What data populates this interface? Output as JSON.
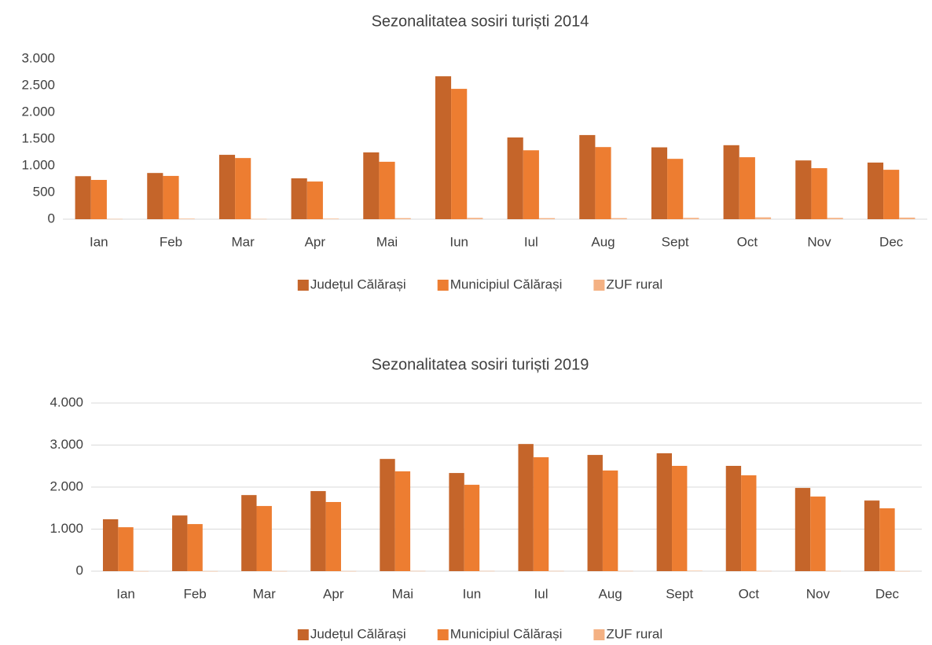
{
  "chart_data": [
    {
      "type": "bar",
      "title": "Sezonalitatea sosiri turiști 2014",
      "categories": [
        "Ian",
        "Feb",
        "Mar",
        "Apr",
        "Mai",
        "Iun",
        "Iul",
        "Aug",
        "Sept",
        "Oct",
        "Nov",
        "Dec"
      ],
      "series": [
        {
          "name": "Județul Călărași",
          "color": "#c5652a",
          "values": [
            805,
            865,
            1205,
            765,
            1250,
            2675,
            1530,
            1575,
            1345,
            1385,
            1100,
            1060
          ]
        },
        {
          "name": "Municipiul Călărași",
          "color": "#ed7d31",
          "values": [
            735,
            810,
            1145,
            705,
            1075,
            2440,
            1290,
            1350,
            1130,
            1160,
            955,
            925
          ]
        },
        {
          "name": "ZUF rural",
          "color": "#f4b183",
          "values": [
            5,
            10,
            5,
            10,
            20,
            25,
            20,
            20,
            25,
            35,
            25,
            30
          ]
        }
      ],
      "ylim": [
        0,
        3000
      ],
      "yticks": [
        0,
        500,
        {
          "value": 1000,
          "label": "1.000"
        },
        {
          "value": 1500,
          "label": "1.500"
        },
        {
          "value": 2000,
          "label": "2.000"
        },
        {
          "value": 2500,
          "label": "2.500"
        },
        {
          "value": 3000,
          "label": "3.000"
        }
      ],
      "grid": false,
      "legend": "bottom"
    },
    {
      "type": "bar",
      "title": "Sezonalitatea sosiri turiști 2019",
      "categories": [
        "Ian",
        "Feb",
        "Mar",
        "Apr",
        "Mai",
        "Iun",
        "Iul",
        "Aug",
        "Sept",
        "Oct",
        "Nov",
        "Dec"
      ],
      "series": [
        {
          "name": "Județul Călărași",
          "color": "#c5652a",
          "values": [
            1235,
            1325,
            1810,
            1905,
            2670,
            2335,
            3025,
            2765,
            2805,
            2505,
            1980,
            1680
          ]
        },
        {
          "name": "Municipiul Călărași",
          "color": "#ed7d31",
          "values": [
            1045,
            1120,
            1550,
            1645,
            2375,
            2055,
            2710,
            2395,
            2505,
            2280,
            1775,
            1495
          ]
        },
        {
          "name": "ZUF rural",
          "color": "#f4b183",
          "values": [
            2,
            2,
            3,
            3,
            5,
            5,
            5,
            5,
            10,
            5,
            5,
            3
          ]
        }
      ],
      "ylim": [
        0,
        4000
      ],
      "yticks": [
        0,
        {
          "value": 1000,
          "label": "1.000"
        },
        {
          "value": 2000,
          "label": "2.000"
        },
        {
          "value": 3000,
          "label": "3.000"
        },
        {
          "value": 4000,
          "label": "4.000"
        }
      ],
      "grid": true,
      "legend": "bottom"
    }
  ]
}
